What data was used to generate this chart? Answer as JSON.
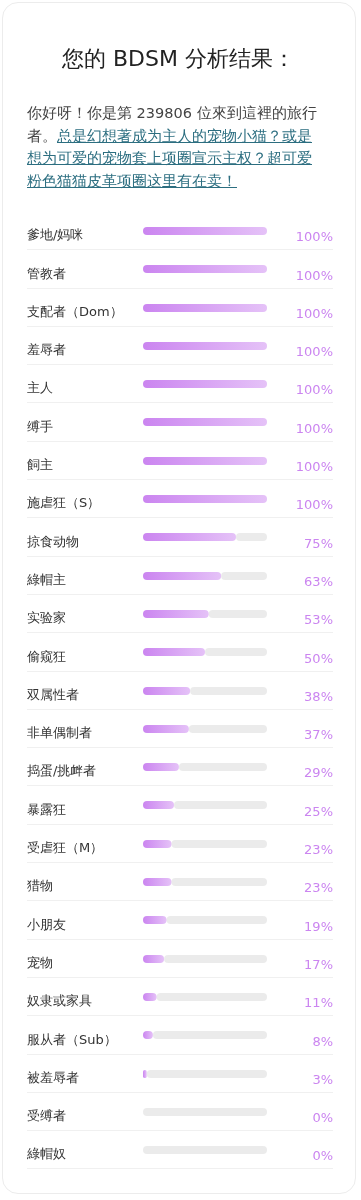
{
  "chart_data": {
    "type": "bar",
    "orientation": "horizontal",
    "stacked": true,
    "grid": "y",
    "title": "您的 BDSM 分析结果：",
    "subtitle": "你好呀！你是第 239806 位來到這裡的旅行者。",
    "annotations": [
      "总是幻想著成为主人的宠物小猫？或是想为可爱的宠物套上项圈宣示主权？超可爱粉色猫猫皮革项圈这里有在卖！"
    ],
    "categories": [
      "爹地/妈咪",
      "管教者",
      "支配者（Dom）",
      "羞辱者",
      "主人",
      "缚手",
      "飼主",
      "施虐狂（S）",
      "掠食动物",
      "綠帽主",
      "实验家",
      "偷窥狂",
      "双属性者",
      "非单偶制者",
      "捣蛋/挑衅者",
      "暴露狂",
      "受虐狂（M）",
      "猎物",
      "小朋友",
      "宠物",
      "奴隶或家具",
      "服从者（Sub）",
      "被羞辱者",
      "受缚者",
      "綠帽奴"
    ],
    "series": [
      {
        "color": "#cb85f0",
        "values": [
          100,
          100,
          100,
          100,
          100,
          100,
          100,
          100,
          75,
          63,
          53,
          50,
          38,
          37,
          29,
          25,
          23,
          23,
          19,
          17,
          11,
          8,
          3,
          0,
          0
        ],
        "value_labels": [
          "100%",
          "100%",
          "100%",
          "100%",
          "100%",
          "100%",
          "100%",
          "100%",
          "75%",
          "63%",
          "53%",
          "50%",
          "38%",
          "37%",
          "29%",
          "25%",
          "23%",
          "23%",
          "19%",
          "17%",
          "11%",
          "8%",
          "3%",
          "0%",
          "0%"
        ]
      },
      {
        "color": "#ebebeb",
        "values": [
          0,
          0,
          0,
          0,
          0,
          0,
          0,
          0,
          25,
          37,
          47,
          50,
          62,
          63,
          71,
          75,
          77,
          77,
          81,
          83,
          89,
          92,
          97,
          100,
          100
        ]
      }
    ]
  }
}
